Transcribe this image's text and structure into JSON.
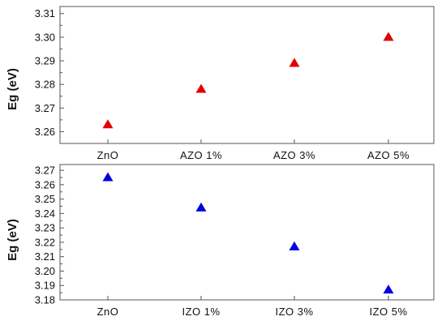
{
  "chart_data": [
    {
      "type": "scatter",
      "marker": "triangle",
      "color": "#e00000",
      "categories": [
        "ZnO",
        "AZO 1%",
        "AZO 3%",
        "AZO 5%"
      ],
      "values": [
        3.263,
        3.278,
        3.289,
        3.3
      ],
      "ylabel": "Eg (eV)",
      "ylim": [
        3.255,
        3.313
      ],
      "yticks": [
        3.26,
        3.27,
        3.28,
        3.29,
        3.3,
        3.31
      ],
      "ytick_labels": [
        "3.26",
        "3.27",
        "3.28",
        "3.29",
        "3.30",
        "3.31"
      ],
      "grid": false
    },
    {
      "type": "scatter",
      "marker": "triangle",
      "color": "#0000e0",
      "categories": [
        "ZnO",
        "IZO 1%",
        "IZO 3%",
        "IZO 5%"
      ],
      "values": [
        3.265,
        3.244,
        3.217,
        3.187
      ],
      "ylabel": "Eg (eV)",
      "ylim": [
        3.18,
        3.274
      ],
      "yticks": [
        3.18,
        3.19,
        3.2,
        3.21,
        3.22,
        3.23,
        3.24,
        3.25,
        3.26,
        3.27
      ],
      "ytick_labels": [
        "3.18",
        "3.19",
        "3.20",
        "3.21",
        "3.22",
        "3.23",
        "3.24",
        "3.25",
        "3.26",
        "3.27"
      ],
      "grid": false
    }
  ]
}
